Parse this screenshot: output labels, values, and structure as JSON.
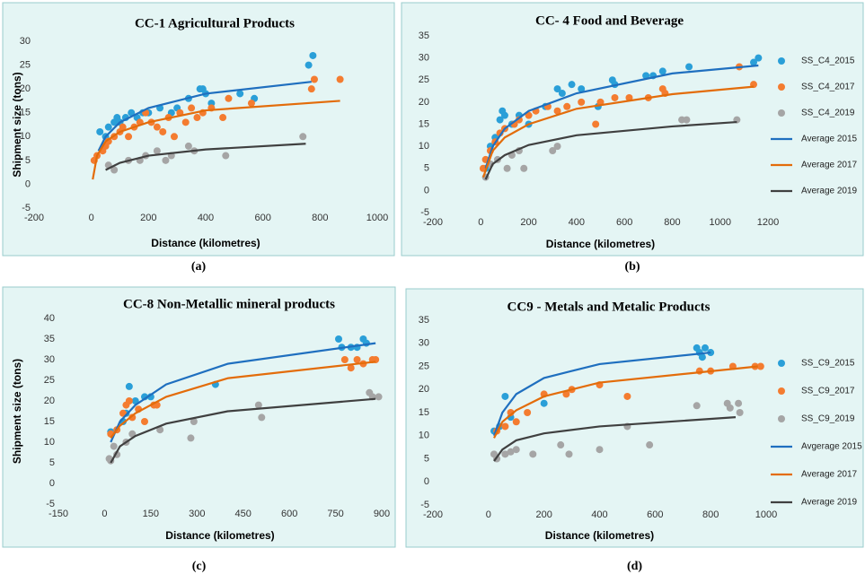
{
  "chart_data": [
    {
      "type": "scatter",
      "title": "CC-1 Agricultural Products",
      "x_label": "Distance (kilometres)",
      "y_label": "Shipment size (tons)",
      "caption": "(a)",
      "xlim": [
        -200,
        1000
      ],
      "xticks": [
        -200,
        0,
        200,
        400,
        600,
        800,
        1000
      ],
      "ylim": [
        -5,
        30
      ],
      "yticks": [
        -5,
        0,
        5,
        10,
        15,
        20,
        25,
        30
      ],
      "series": [
        {
          "type": "scatter",
          "color": "#2a9fd8",
          "x": [
            30,
            50,
            60,
            80,
            90,
            100,
            120,
            140,
            160,
            180,
            200,
            240,
            280,
            300,
            340,
            380,
            390,
            400,
            420,
            520,
            570,
            760,
            775
          ],
          "values": [
            11,
            10,
            12,
            13,
            14,
            13,
            14,
            15,
            14,
            15,
            15,
            16,
            15,
            16,
            18,
            20,
            20,
            19,
            17,
            19,
            18,
            25,
            27
          ]
        },
        {
          "type": "scatter",
          "color": "#f47c30",
          "x": [
            10,
            20,
            40,
            50,
            60,
            80,
            100,
            110,
            130,
            150,
            170,
            190,
            210,
            230,
            250,
            270,
            290,
            310,
            330,
            350,
            370,
            390,
            420,
            460,
            480,
            560,
            770,
            780,
            870
          ],
          "values": [
            5,
            6,
            7,
            8,
            9,
            10,
            11,
            12,
            10,
            12,
            13,
            15,
            13,
            12,
            11,
            14,
            10,
            15,
            13,
            16,
            14,
            15,
            16,
            14,
            18,
            17,
            20,
            22,
            22
          ]
        },
        {
          "type": "scatter",
          "color": "#a5a5a5",
          "x": [
            60,
            80,
            130,
            170,
            190,
            230,
            260,
            280,
            340,
            360,
            470,
            740
          ],
          "values": [
            4,
            3,
            5,
            5,
            6,
            7,
            5,
            6,
            8,
            7,
            6,
            10
          ]
        },
        {
          "type": "line",
          "color": "#1f6fbf",
          "x": [
            25,
            50,
            100,
            200,
            400,
            770
          ],
          "values": [
            7,
            10,
            13,
            16,
            19,
            21.5
          ]
        },
        {
          "type": "line",
          "color": "#e36c0a",
          "x": [
            5,
            20,
            50,
            100,
            200,
            400,
            870
          ],
          "values": [
            1,
            6,
            9,
            11,
            13,
            15.5,
            17.5
          ]
        },
        {
          "type": "line",
          "color": "#404040",
          "x": [
            50,
            100,
            200,
            400,
            750
          ],
          "values": [
            3,
            4.5,
            6,
            7.3,
            8.5
          ]
        }
      ]
    },
    {
      "type": "scatter",
      "title": "CC- 4 Food and Beverage",
      "x_label": "Distance (kilometres)",
      "caption": "(b)",
      "xlim": [
        -200,
        1200
      ],
      "xticks": [
        -200,
        0,
        200,
        400,
        600,
        800,
        1000,
        1200
      ],
      "ylim": [
        -5,
        35
      ],
      "yticks": [
        -5,
        0,
        5,
        10,
        15,
        20,
        25,
        30,
        35
      ],
      "series": [
        {
          "name": "SS_C4_2015",
          "type": "scatter",
          "color": "#2a9fd8",
          "x": [
            20,
            40,
            60,
            80,
            90,
            100,
            130,
            160,
            200,
            270,
            320,
            340,
            380,
            420,
            490,
            550,
            560,
            690,
            720,
            760,
            870,
            1140,
            1160
          ],
          "values": [
            5,
            10,
            12,
            16,
            18,
            17,
            15,
            17,
            15,
            19,
            23,
            22,
            24,
            23,
            19,
            25,
            24,
            26,
            26,
            27,
            28,
            29,
            30
          ]
        },
        {
          "name": "SS_C4_2017",
          "type": "scatter",
          "color": "#f47c30",
          "x": [
            10,
            20,
            40,
            60,
            80,
            100,
            140,
            160,
            200,
            230,
            280,
            320,
            360,
            420,
            480,
            500,
            560,
            620,
            700,
            760,
            770,
            1080,
            1140
          ],
          "values": [
            5,
            7,
            9,
            11,
            13,
            14,
            15,
            16,
            17,
            18,
            19,
            18,
            19,
            20,
            15,
            20,
            21,
            21,
            21,
            23,
            22,
            28,
            24
          ]
        },
        {
          "name": "SS_C4_2019",
          "type": "scatter",
          "color": "#a5a5a5",
          "x": [
            20,
            40,
            70,
            110,
            130,
            160,
            180,
            300,
            320,
            840,
            860,
            1070
          ],
          "values": [
            3,
            6,
            7,
            5,
            8,
            9,
            5,
            9,
            10,
            16,
            16,
            16
          ]
        },
        {
          "name": "Average 2015",
          "type": "line",
          "color": "#1f6fbf",
          "x": [
            20,
            50,
            100,
            200,
            400,
            800,
            1160
          ],
          "values": [
            5,
            10,
            14,
            18,
            22,
            26.5,
            28.3
          ]
        },
        {
          "name": "Average 2017",
          "type": "line",
          "color": "#e36c0a",
          "x": [
            10,
            50,
            100,
            200,
            400,
            800,
            1140
          ],
          "values": [
            3,
            9,
            12,
            15,
            18.5,
            21.8,
            23.5
          ]
        },
        {
          "name": "Average 2019",
          "type": "line",
          "color": "#404040",
          "x": [
            20,
            50,
            100,
            200,
            400,
            800,
            1070
          ],
          "values": [
            2.5,
            6,
            8,
            10.3,
            12.5,
            14.5,
            15.5
          ]
        }
      ]
    },
    {
      "type": "scatter",
      "title": "CC-8 Non-Metallic mineral products",
      "x_label": "Distance (kilometres)",
      "y_label": "Shipment size (tons)",
      "caption": "(c)",
      "xlim": [
        -150,
        900
      ],
      "xticks": [
        -150,
        0,
        150,
        300,
        450,
        600,
        750,
        900
      ],
      "ylim": [
        -5,
        40
      ],
      "yticks": [
        -5,
        0,
        5,
        10,
        15,
        20,
        25,
        30,
        35,
        40
      ],
      "series": [
        {
          "type": "scatter",
          "color": "#2a9fd8",
          "x": [
            20,
            60,
            70,
            80,
            100,
            130,
            150,
            360,
            760,
            770,
            800,
            820,
            840,
            850
          ],
          "values": [
            12.5,
            15,
            17,
            23.5,
            20,
            21,
            21,
            24,
            35,
            33,
            33,
            33,
            35,
            34
          ]
        },
        {
          "type": "scatter",
          "color": "#f47c30",
          "x": [
            20,
            40,
            60,
            70,
            80,
            90,
            110,
            130,
            160,
            170,
            780,
            800,
            820,
            840,
            870,
            880
          ],
          "values": [
            12,
            13,
            17,
            19,
            20,
            16,
            18,
            15,
            19,
            19,
            30,
            28,
            30,
            29,
            30,
            30
          ]
        },
        {
          "type": "scatter",
          "color": "#a5a5a5",
          "x": [
            15,
            20,
            30,
            40,
            70,
            90,
            180,
            280,
            290,
            500,
            510,
            860,
            870,
            890
          ],
          "values": [
            6,
            5.5,
            9,
            7,
            10,
            12,
            13,
            11,
            15,
            19,
            16,
            22,
            21,
            21
          ]
        },
        {
          "type": "line",
          "color": "#1f6fbf",
          "x": [
            20,
            50,
            100,
            200,
            400,
            880
          ],
          "values": [
            10,
            15,
            19,
            24,
            29,
            34
          ]
        },
        {
          "type": "line",
          "color": "#e36c0a",
          "x": [
            20,
            50,
            100,
            200,
            400,
            880
          ],
          "values": [
            11,
            14,
            17,
            21,
            25.5,
            29.5
          ]
        },
        {
          "type": "line",
          "color": "#404040",
          "x": [
            20,
            50,
            100,
            200,
            400,
            880
          ],
          "values": [
            5,
            9,
            11.5,
            14.5,
            17.5,
            20.5
          ]
        }
      ]
    },
    {
      "type": "scatter",
      "title": "CC9 - Metals and Metalic Products",
      "x_label": "Distance (kilometres)",
      "caption": "(d)",
      "xlim": [
        -200,
        1000
      ],
      "xticks": [
        -200,
        0,
        200,
        400,
        600,
        800,
        1000
      ],
      "ylim": [
        -5,
        35
      ],
      "yticks": [
        -5,
        0,
        5,
        10,
        15,
        20,
        25,
        30,
        35
      ],
      "series": [
        {
          "name": "SS_C9_2015",
          "type": "scatter",
          "color": "#2a9fd8",
          "x": [
            20,
            40,
            60,
            80,
            200,
            750,
            760,
            770,
            780,
            800
          ],
          "values": [
            11,
            12,
            18.5,
            14,
            17,
            29,
            28,
            27,
            29,
            28
          ]
        },
        {
          "name": "SS_C9_2017",
          "type": "scatter",
          "color": "#f47c30",
          "x": [
            30,
            60,
            80,
            100,
            140,
            200,
            280,
            300,
            400,
            500,
            760,
            800,
            880,
            960,
            980
          ],
          "values": [
            11,
            12,
            15,
            13,
            15,
            19,
            19,
            20,
            21,
            18.5,
            24,
            24,
            25,
            25,
            25
          ]
        },
        {
          "name": "SS_C9_2019",
          "type": "scatter",
          "color": "#a5a5a5",
          "x": [
            20,
            30,
            60,
            80,
            100,
            160,
            260,
            290,
            400,
            500,
            580,
            750,
            860,
            870,
            900,
            905
          ],
          "values": [
            6,
            5,
            6,
            6.5,
            7,
            6,
            8,
            6,
            7,
            12,
            8,
            16.5,
            17,
            16,
            17,
            15
          ]
        },
        {
          "name": "Avgerage 2015",
          "type": "line",
          "color": "#1f6fbf",
          "x": [
            20,
            50,
            100,
            200,
            400,
            800
          ],
          "values": [
            10,
            15,
            19,
            22.5,
            25.5,
            28
          ]
        },
        {
          "name": "Average 2017",
          "type": "line",
          "color": "#e36c0a",
          "x": [
            20,
            50,
            100,
            200,
            400,
            970
          ],
          "values": [
            9.5,
            13,
            15.5,
            18.5,
            21.5,
            25
          ]
        },
        {
          "name": "Average 2019",
          "type": "line",
          "color": "#404040",
          "x": [
            20,
            50,
            100,
            200,
            400,
            890
          ],
          "values": [
            4.5,
            7,
            9,
            10.5,
            12,
            14
          ]
        }
      ]
    }
  ]
}
